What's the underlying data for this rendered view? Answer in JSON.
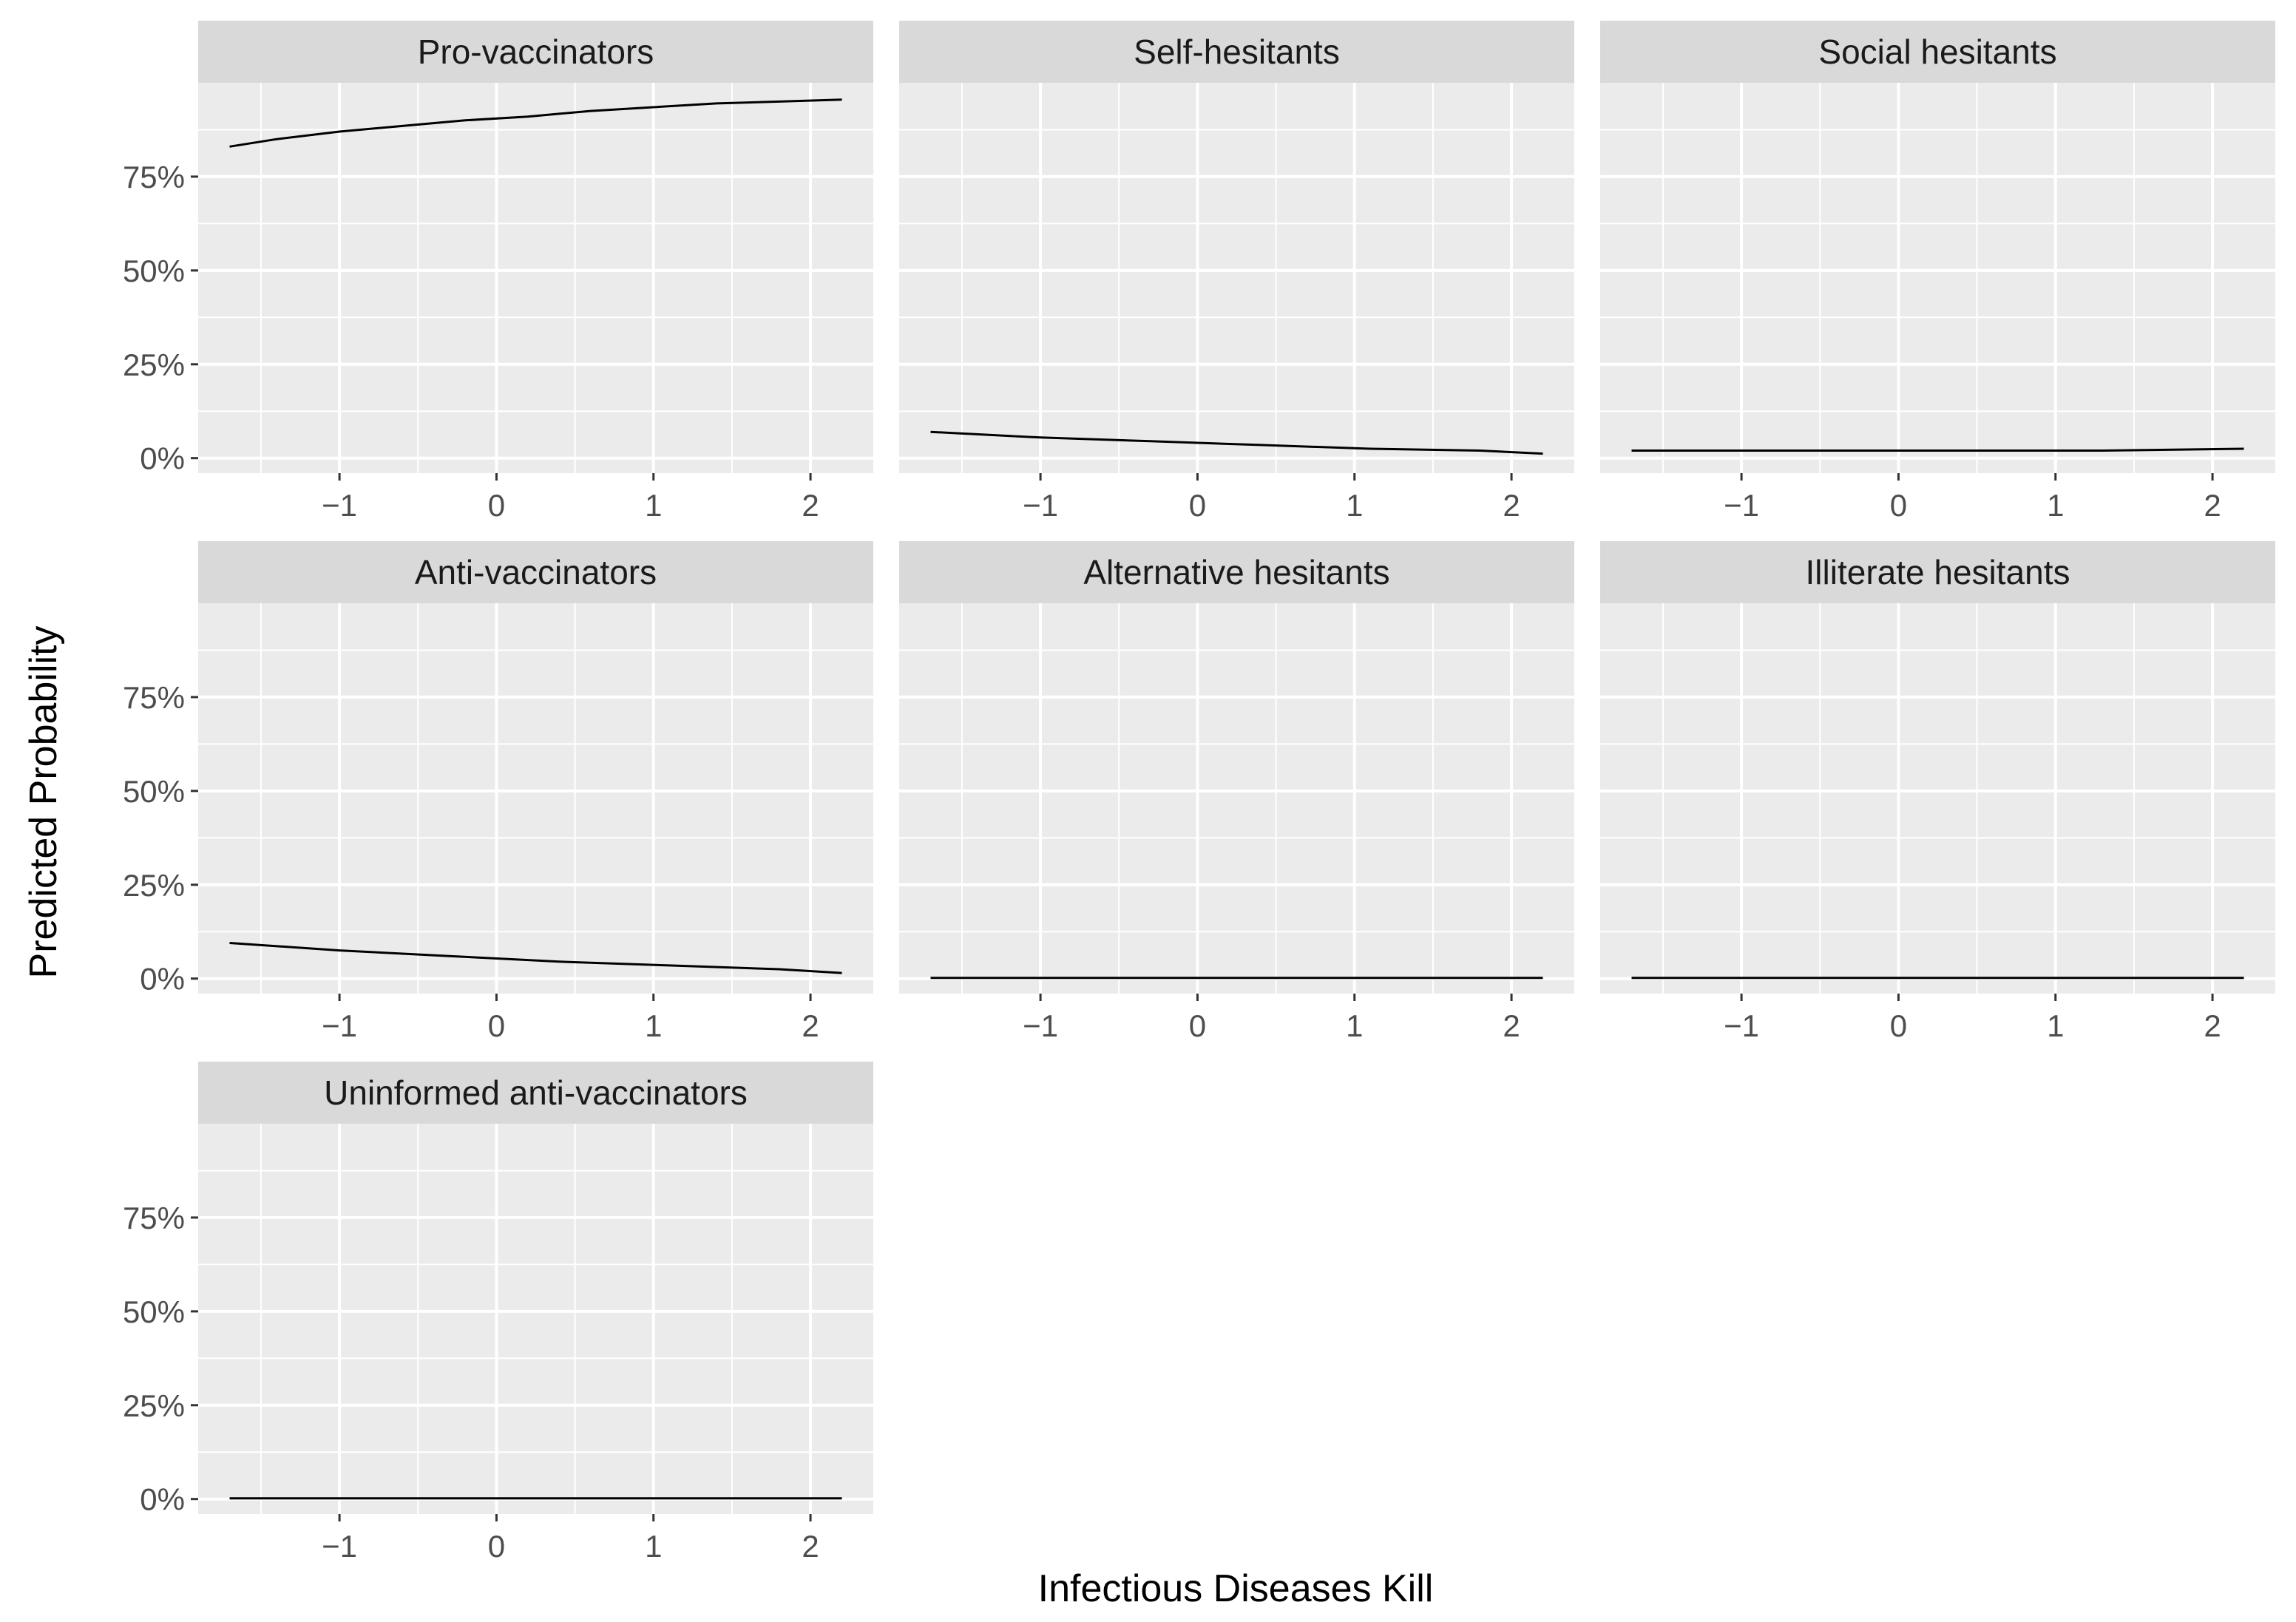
{
  "chart_data": {
    "type": "line",
    "layout": "facet-grid",
    "xlabel": "Infectious Diseases Kill",
    "ylabel": "Predicted Probability",
    "x_ticks": [
      -1,
      0,
      1,
      2
    ],
    "x_tick_labels": [
      "-1",
      "0",
      "1",
      "2"
    ],
    "y_ticks": [
      0,
      0.25,
      0.5,
      0.75
    ],
    "y_tick_labels": [
      "0%",
      "25%",
      "50%",
      "75%"
    ],
    "xlim": [
      -1.9,
      2.4
    ],
    "ylim": [
      -0.04,
      1.0
    ],
    "grid": true,
    "line_color": "#000000",
    "panel_background": "#ebebeb",
    "strip_background": "#d9d9d9",
    "grid_color": "#ffffff",
    "facets": [
      {
        "title": "Pro-vaccinators",
        "x": [
          -1.7,
          -1.4,
          -1.0,
          -0.6,
          -0.2,
          0.2,
          0.6,
          1.0,
          1.4,
          1.8,
          2.2
        ],
        "y": [
          0.83,
          0.85,
          0.87,
          0.885,
          0.9,
          0.91,
          0.925,
          0.935,
          0.945,
          0.95,
          0.955
        ]
      },
      {
        "title": "Self-hesitants",
        "x": [
          -1.7,
          -1.0,
          -0.3,
          0.4,
          1.1,
          1.8,
          2.2
        ],
        "y": [
          0.07,
          0.055,
          0.045,
          0.035,
          0.025,
          0.02,
          0.012
        ]
      },
      {
        "title": "Social hesitants",
        "x": [
          -1.7,
          0.0,
          1.3,
          2.2
        ],
        "y": [
          0.02,
          0.02,
          0.02,
          0.025
        ]
      },
      {
        "title": "Anti-vaccinators",
        "x": [
          -1.7,
          -1.0,
          -0.3,
          0.4,
          1.1,
          1.8,
          2.2
        ],
        "y": [
          0.095,
          0.075,
          0.06,
          0.045,
          0.035,
          0.025,
          0.015
        ]
      },
      {
        "title": "Alternative hesitants",
        "x": [
          -1.7,
          2.2
        ],
        "y": [
          0.002,
          0.002
        ]
      },
      {
        "title": "Illiterate hesitants",
        "x": [
          -1.7,
          2.2
        ],
        "y": [
          0.002,
          0.002
        ]
      },
      {
        "title": "Uninformed anti-vaccinators",
        "x": [
          -1.7,
          2.2
        ],
        "y": [
          0.002,
          0.002
        ]
      }
    ]
  }
}
